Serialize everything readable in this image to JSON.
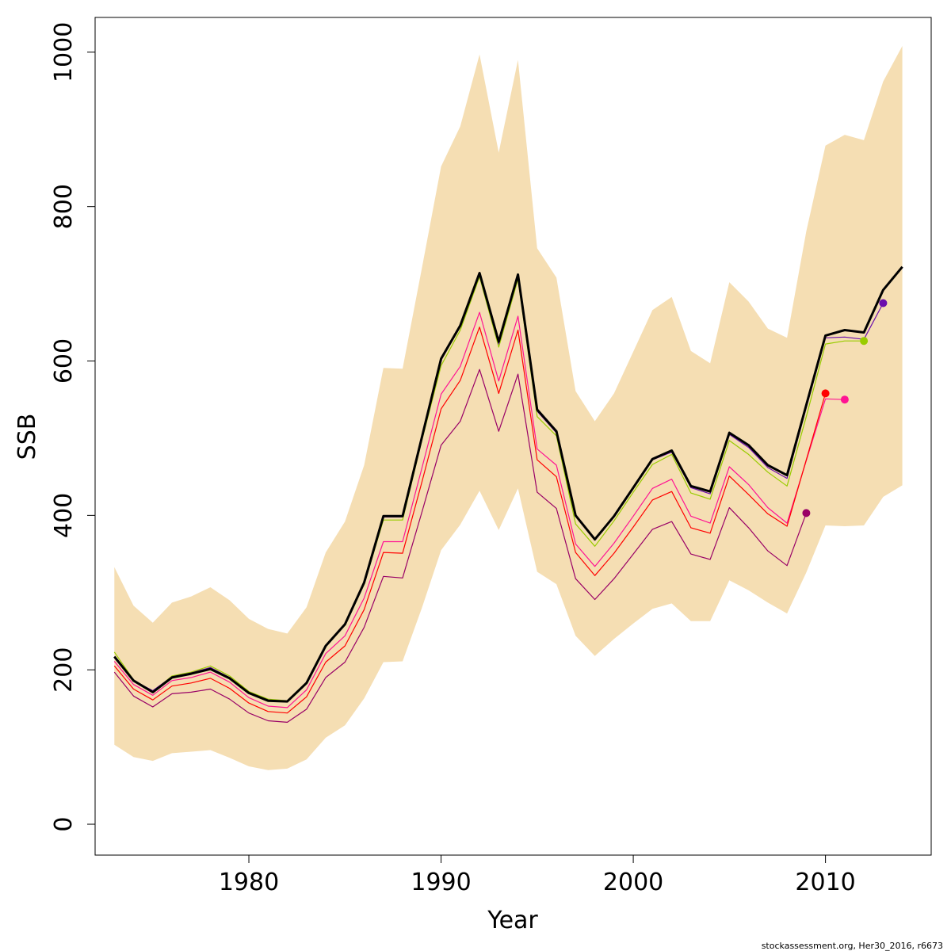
{
  "chart_data": {
    "type": "line",
    "title": "",
    "xlabel": "Year",
    "ylabel": "SSB",
    "xlim": [
      1972,
      2015.5
    ],
    "ylim": [
      -40,
      1045
    ],
    "x_ticks": [
      1980,
      1990,
      2000,
      2010
    ],
    "y_ticks": [
      0,
      200,
      400,
      600,
      800,
      1000
    ],
    "grid": false,
    "legend": "none",
    "band": {
      "color": "#F5DEB3",
      "x": [
        1973,
        1974,
        1975,
        1976,
        1977,
        1978,
        1979,
        1980,
        1981,
        1982,
        1983,
        1984,
        1985,
        1986,
        1987,
        1988,
        1989,
        1990,
        1991,
        1992,
        1993,
        1994,
        1995,
        1996,
        1997,
        1998,
        1999,
        2000,
        2001,
        2002,
        2003,
        2004,
        2005,
        2006,
        2007,
        2008,
        2009,
        2010,
        2011,
        2012,
        2013,
        2014
      ],
      "lower": [
        103,
        87,
        82,
        92,
        94,
        96,
        86,
        75,
        70,
        72,
        84,
        112,
        128,
        163,
        210,
        211,
        280,
        355,
        388,
        432,
        381,
        435,
        327,
        311,
        244,
        218,
        240,
        260,
        279,
        286,
        263,
        263,
        316,
        303,
        287,
        273,
        326,
        387,
        386,
        387,
        424,
        439
      ],
      "upper": [
        333,
        283,
        261,
        287,
        295,
        307,
        290,
        266,
        253,
        247,
        281,
        352,
        392,
        465,
        591,
        590,
        720,
        852,
        904,
        997,
        870,
        990,
        746,
        708,
        561,
        522,
        558,
        612,
        666,
        683,
        613,
        597,
        702,
        677,
        642,
        630,
        768,
        879,
        893,
        886,
        962,
        1008
      ]
    },
    "series": [
      {
        "color": "#99CC00",
        "width": 1.2,
        "x": [
          1973,
          1974,
          1975,
          1976,
          1977,
          1978,
          1979,
          1980,
          1981,
          1982,
          1983,
          1984,
          1985,
          1986,
          1987,
          1988,
          1989,
          1990,
          1991,
          1992,
          1993,
          1994,
          1995,
          1996,
          1997,
          1998,
          1999,
          2000,
          2001,
          2002,
          2003,
          2004,
          2005,
          2006,
          2007,
          2008,
          2009,
          2010,
          2011,
          2012
        ],
        "y": [
          223,
          187,
          172,
          192,
          197,
          205,
          192,
          172,
          162,
          160,
          184,
          232,
          258,
          311,
          394,
          394,
          497,
          594,
          640,
          709,
          618,
          706,
          528,
          503,
          389,
          360,
          393,
          430,
          466,
          479,
          429,
          421,
          497,
          479,
          456,
          438,
          528,
          622,
          626,
          626
        ],
        "end_point": true
      },
      {
        "color": "#6A0DAD",
        "width": 1.2,
        "x": [
          1973,
          1974,
          1975,
          1976,
          1977,
          1978,
          1979,
          1980,
          1981,
          1982,
          1983,
          1984,
          1985,
          1986,
          1987,
          1988,
          1989,
          1990,
          1991,
          1992,
          1993,
          1994,
          1995,
          1996,
          1997,
          1998,
          1999,
          2000,
          2001,
          2002,
          2003,
          2004,
          2005,
          2006,
          2007,
          2008,
          2009,
          2010,
          2011,
          2012,
          2013
        ],
        "y": [
          217,
          186,
          173,
          191,
          196,
          203,
          190,
          170,
          161,
          159,
          184,
          232,
          260,
          314,
          398,
          398,
          500,
          602,
          645,
          712,
          622,
          710,
          535,
          507,
          400,
          370,
          398,
          435,
          472,
          482,
          436,
          428,
          505,
          488,
          462,
          448,
          540,
          630,
          631,
          628,
          675
        ],
        "end_point": true
      },
      {
        "color": "#FF1493",
        "width": 1.2,
        "x": [
          1973,
          1974,
          1975,
          1976,
          1977,
          1978,
          1979,
          1980,
          1981,
          1982,
          1983,
          1984,
          1985,
          1986,
          1987,
          1988,
          1989,
          1990,
          1991,
          1992,
          1993,
          1994,
          1995,
          1996,
          1997,
          1998,
          1999,
          2000,
          2001,
          2002,
          2003,
          2004,
          2005,
          2006,
          2007,
          2008,
          2009,
          2010,
          2011
        ],
        "y": [
          211,
          181,
          167,
          186,
          190,
          197,
          184,
          164,
          153,
          151,
          174,
          221,
          244,
          293,
          366,
          366,
          461,
          557,
          593,
          663,
          574,
          658,
          486,
          465,
          363,
          334,
          364,
          399,
          435,
          447,
          399,
          390,
          463,
          440,
          410,
          390,
          471,
          551,
          550
        ],
        "end_point": true
      },
      {
        "color": "#FF0000",
        "width": 1.2,
        "x": [
          1973,
          1974,
          1975,
          1976,
          1977,
          1978,
          1979,
          1980,
          1981,
          1982,
          1983,
          1984,
          1985,
          1986,
          1987,
          1988,
          1989,
          1990,
          1991,
          1992,
          1993,
          1994,
          1995,
          1996,
          1997,
          1998,
          1999,
          2000,
          2001,
          2002,
          2003,
          2004,
          2005,
          2006,
          2007,
          2008,
          2009,
          2010
        ],
        "y": [
          205,
          175,
          161,
          179,
          183,
          189,
          176,
          157,
          146,
          144,
          165,
          210,
          231,
          278,
          352,
          351,
          443,
          538,
          575,
          644,
          558,
          640,
          472,
          450,
          352,
          322,
          351,
          385,
          420,
          431,
          384,
          377,
          451,
          427,
          402,
          386,
          472,
          558
        ],
        "end_point": true
      },
      {
        "color": "#990066",
        "width": 1.2,
        "x": [
          1973,
          1974,
          1975,
          1976,
          1977,
          1978,
          1979,
          1980,
          1981,
          1982,
          1983,
          1984,
          1985,
          1986,
          1987,
          1988,
          1989,
          1990,
          1991,
          1992,
          1993,
          1994,
          1995,
          1996,
          1997,
          1998,
          1999,
          2000,
          2001,
          2002,
          2003,
          2004,
          2005,
          2006,
          2007,
          2008,
          2009
        ],
        "y": [
          197,
          166,
          152,
          169,
          171,
          175,
          162,
          144,
          134,
          132,
          149,
          190,
          210,
          255,
          321,
          319,
          404,
          491,
          522,
          589,
          509,
          583,
          430,
          409,
          318,
          291,
          318,
          350,
          382,
          392,
          350,
          343,
          410,
          384,
          354,
          335,
          403
        ],
        "end_point": true
      },
      {
        "color": "#000000",
        "width": 3,
        "x": [
          1973,
          1974,
          1975,
          1976,
          1977,
          1978,
          1979,
          1980,
          1981,
          1982,
          1983,
          1984,
          1985,
          1986,
          1987,
          1988,
          1989,
          1990,
          1991,
          1992,
          1993,
          1994,
          1995,
          1996,
          1997,
          1998,
          1999,
          2000,
          2001,
          2002,
          2003,
          2004,
          2005,
          2006,
          2007,
          2008,
          2009,
          2010,
          2011,
          2012,
          2013,
          2014
        ],
        "y": [
          217,
          186,
          171,
          190,
          195,
          201,
          189,
          170,
          160,
          159,
          183,
          231,
          259,
          313,
          399,
          399,
          501,
          603,
          646,
          714,
          625,
          712,
          537,
          509,
          400,
          369,
          399,
          436,
          473,
          484,
          438,
          431,
          507,
          491,
          465,
          452,
          543,
          633,
          640,
          637,
          692,
          722
        ],
        "end_point": false
      }
    ],
    "footnote": "stockassessment.org, Her30_2016, r6673"
  }
}
